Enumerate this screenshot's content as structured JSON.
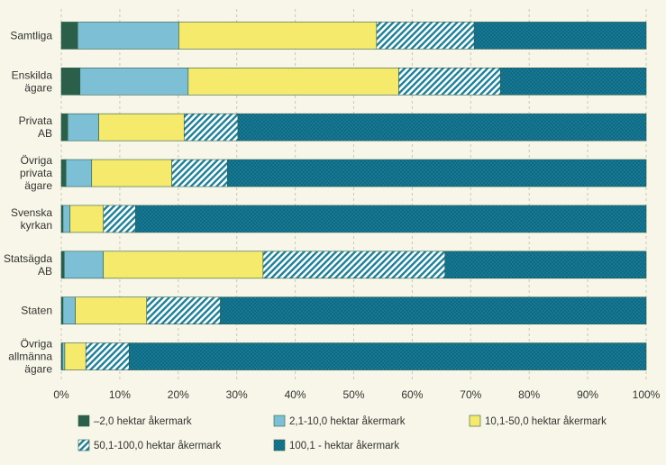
{
  "chart_data": {
    "type": "bar",
    "orientation": "horizontal",
    "stacked": true,
    "percent": true,
    "categories": [
      [
        "Samtliga"
      ],
      [
        "Enskilda",
        "ägare"
      ],
      [
        "Privata",
        "AB"
      ],
      [
        "Övriga",
        "privata",
        "ägare"
      ],
      [
        "Svenska",
        "kyrkan"
      ],
      [
        "Statsägda",
        "AB"
      ],
      [
        "Staten"
      ],
      [
        "Övriga",
        "allmänna",
        "ägare"
      ]
    ],
    "series": [
      {
        "name": "–2,0 hektar åkermark",
        "color": "#2b5f4a",
        "pattern": "solid",
        "values": [
          2.8,
          3.2,
          1.1,
          0.8,
          0.3,
          0.5,
          0.3,
          0.2
        ]
      },
      {
        "name": "2,1-10,0 hektar åkermark",
        "color": "#7dc0d6",
        "pattern": "solid",
        "values": [
          17.3,
          18.5,
          5.3,
          4.4,
          1.2,
          6.7,
          2.1,
          0.4
        ]
      },
      {
        "name": "10,1-50,0 hektar åkermark",
        "color": "#f6ea6c",
        "pattern": "solid",
        "values": [
          33.8,
          36.0,
          14.6,
          13.7,
          5.7,
          27.3,
          12.2,
          3.6
        ]
      },
      {
        "name": "50,1-100,0 hektar åkermark",
        "color": "#1a7f99",
        "pattern": "stripes",
        "values": [
          16.7,
          17.4,
          9.2,
          9.5,
          5.5,
          31.1,
          12.6,
          7.4
        ]
      },
      {
        "name": "100,1 - hektar åkermark",
        "color": "#0b6b86",
        "pattern": "dots",
        "values": [
          29.4,
          24.9,
          69.8,
          71.6,
          87.3,
          34.4,
          72.8,
          88.4
        ]
      }
    ],
    "xlim": [
      0,
      100
    ],
    "xticks": [
      "0%",
      "10%",
      "20%",
      "30%",
      "40%",
      "50%",
      "60%",
      "70%",
      "80%",
      "90%",
      "100%"
    ],
    "grid": true,
    "legend_position": "bottom"
  }
}
